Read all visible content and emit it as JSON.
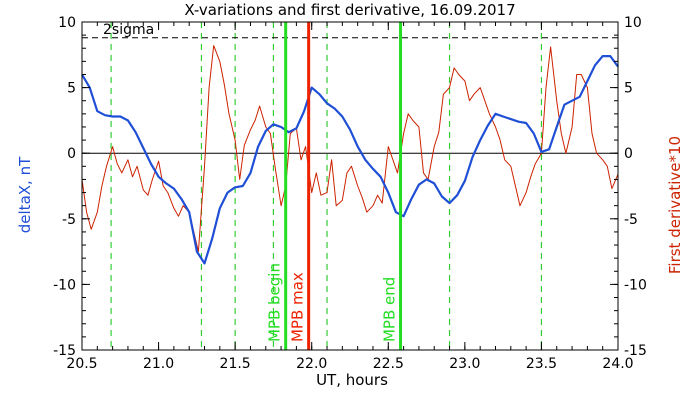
{
  "chart_data": {
    "type": "line",
    "title": "X-variations and first derivative, 16.09.2017",
    "xlabel": "UT, hours",
    "ylabel_left": "deltaX, nT",
    "ylabel_right": "First derivative*10",
    "xlim": [
      20.5,
      24.0
    ],
    "ylim": [
      -15,
      10
    ],
    "x_ticks": [
      "20.5",
      "21.0",
      "21.5",
      "22.0",
      "22.5",
      "23.0",
      "23.5",
      "24.0"
    ],
    "y_ticks_left": [
      "10",
      "5",
      "0",
      "-5",
      "-10",
      "-15"
    ],
    "y_ticks_right": [
      "10",
      "5",
      "0",
      "-5",
      "-10",
      "-15"
    ],
    "sigma_label": "2sigma",
    "sigma_level": 8.8,
    "zero_level": 0,
    "colors": {
      "deltaX": "#1f4fd6",
      "derivative": "#cc2200",
      "green": "#22dd22",
      "red": "#ee2200",
      "dashed_green": "#33cc33"
    },
    "green_dashed_x": [
      20.69,
      21.28,
      21.5,
      21.75,
      22.1,
      22.9,
      23.5
    ],
    "markers": [
      {
        "label": "MPB begin",
        "x": 21.83,
        "kind": "begin"
      },
      {
        "label": "MPB max",
        "x": 21.98,
        "kind": "max"
      },
      {
        "label": "MPB end",
        "x": 22.58,
        "kind": "end"
      }
    ],
    "series": [
      {
        "name": "deltaX",
        "x": [
          20.5,
          20.55,
          20.6,
          20.65,
          20.7,
          20.75,
          20.8,
          20.85,
          20.9,
          20.95,
          21.0,
          21.05,
          21.1,
          21.15,
          21.2,
          21.25,
          21.3,
          21.35,
          21.4,
          21.45,
          21.5,
          21.55,
          21.6,
          21.65,
          21.7,
          21.75,
          21.8,
          21.85,
          21.9,
          21.95,
          22.0,
          22.05,
          22.1,
          22.15,
          22.2,
          22.25,
          22.3,
          22.35,
          22.4,
          22.45,
          22.5,
          22.55,
          22.6,
          22.65,
          22.7,
          22.75,
          22.8,
          22.85,
          22.9,
          22.95,
          23.0,
          23.05,
          23.1,
          23.15,
          23.2,
          23.25,
          23.3,
          23.35,
          23.4,
          23.45,
          23.5,
          23.55,
          23.6,
          23.65,
          23.7,
          23.75,
          23.8,
          23.85,
          23.9,
          23.95,
          24.0
        ],
        "values": [
          6.0,
          5.0,
          3.2,
          2.9,
          2.8,
          2.8,
          2.5,
          1.6,
          0.4,
          -0.8,
          -1.8,
          -2.3,
          -2.7,
          -3.5,
          -4.5,
          -7.5,
          -8.4,
          -6.5,
          -4.2,
          -3.0,
          -2.6,
          -2.5,
          -1.5,
          0.5,
          1.7,
          2.2,
          2.0,
          1.6,
          1.9,
          3.2,
          5.0,
          4.5,
          3.8,
          3.4,
          2.8,
          1.8,
          0.5,
          -0.5,
          -1.2,
          -1.8,
          -3.0,
          -4.5,
          -4.8,
          -3.5,
          -2.4,
          -2.0,
          -2.3,
          -3.3,
          -3.8,
          -3.2,
          -2.1,
          -0.3,
          1.0,
          2.1,
          3.0,
          2.8,
          2.6,
          2.4,
          2.3,
          1.5,
          0.1,
          0.3,
          2.0,
          3.7,
          4.0,
          4.3,
          5.5,
          6.7,
          7.4,
          7.4,
          6.6
        ]
      },
      {
        "name": "First derivative*10",
        "x": [
          20.5,
          20.53,
          20.56,
          20.6,
          20.63,
          20.66,
          20.7,
          20.73,
          20.76,
          20.8,
          20.83,
          20.86,
          20.9,
          20.93,
          20.96,
          21.0,
          21.03,
          21.06,
          21.1,
          21.13,
          21.16,
          21.2,
          21.23,
          21.26,
          21.3,
          21.33,
          21.36,
          21.4,
          21.43,
          21.46,
          21.5,
          21.53,
          21.56,
          21.6,
          21.63,
          21.66,
          21.7,
          21.73,
          21.76,
          21.8,
          21.83,
          21.86,
          21.9,
          21.93,
          21.96,
          22.0,
          22.03,
          22.06,
          22.1,
          22.13,
          22.16,
          22.2,
          22.23,
          22.26,
          22.3,
          22.33,
          22.36,
          22.4,
          22.43,
          22.46,
          22.5,
          22.53,
          22.56,
          22.6,
          22.63,
          22.66,
          22.7,
          22.73,
          22.76,
          22.8,
          22.83,
          22.86,
          22.9,
          22.93,
          22.96,
          23.0,
          23.03,
          23.06,
          23.1,
          23.13,
          23.16,
          23.2,
          23.23,
          23.26,
          23.3,
          23.33,
          23.36,
          23.4,
          23.43,
          23.46,
          23.5,
          23.53,
          23.56,
          23.6,
          23.63,
          23.66,
          23.7,
          23.73,
          23.76,
          23.8,
          23.83,
          23.86,
          23.9,
          23.93,
          23.96,
          24.0
        ],
        "values": [
          -2.0,
          -4.5,
          -5.8,
          -4.5,
          -2.5,
          -1.0,
          0.5,
          -0.8,
          -1.5,
          -0.5,
          -1.8,
          -1.0,
          -2.8,
          -3.2,
          -2.0,
          -0.6,
          -2.5,
          -3.0,
          -4.2,
          -4.8,
          -4.0,
          -4.5,
          -6.0,
          -7.5,
          -1.0,
          5.0,
          8.2,
          7.0,
          5.2,
          3.0,
          1.0,
          -2.0,
          0.6,
          1.8,
          2.5,
          3.6,
          2.0,
          1.5,
          -1.0,
          -4.0,
          -2.5,
          1.5,
          1.9,
          -0.5,
          0.5,
          -3.0,
          -1.5,
          -3.2,
          -3.0,
          -0.5,
          -4.0,
          -3.6,
          -1.5,
          -1.0,
          -2.5,
          -3.4,
          -4.5,
          -4.0,
          -3.2,
          -3.8,
          0.5,
          -0.5,
          -1.5,
          1.5,
          3.0,
          2.5,
          2.0,
          -1.5,
          -2.0,
          0.5,
          1.6,
          4.5,
          5.0,
          6.5,
          6.0,
          5.5,
          4.0,
          4.5,
          5.0,
          4.0,
          3.0,
          2.0,
          1.0,
          -0.5,
          -1.0,
          -2.5,
          -4.0,
          -3.0,
          -1.8,
          -0.8,
          0.0,
          5.0,
          8.1,
          4.0,
          1.5,
          0.0,
          2.0,
          6.0,
          6.0,
          5.0,
          1.5,
          0.0,
          -0.5,
          -1.0,
          -2.7,
          -1.6
        ]
      }
    ]
  }
}
